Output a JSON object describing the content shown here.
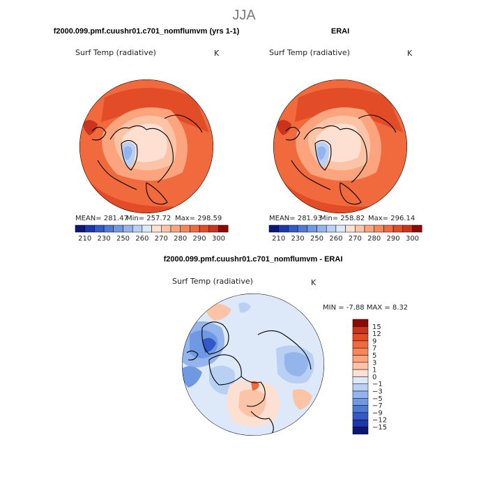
{
  "figure": {
    "title": "JJA"
  },
  "colors": {
    "warm": [
      "#fde0d2",
      "#fcc4a6",
      "#fba47e",
      "#f7875b",
      "#f06a3d",
      "#e24c26",
      "#c8341c",
      "#8c0a05"
    ],
    "diff_pos": [
      "#fde0d2",
      "#fcc4a6",
      "#fba47e",
      "#f7875b",
      "#f06a3d",
      "#e24c26",
      "#c8341c",
      "#8c0a05"
    ],
    "diff_neg": [
      "#dde9f9",
      "#b8d0f3",
      "#93b5ec",
      "#6f99e3",
      "#4e7ad6",
      "#3459c7",
      "#1e37a8",
      "#0b1675"
    ],
    "cold": [
      "#0b1675",
      "#1e37a8",
      "#3459c7",
      "#4e7ad6",
      "#6f99e3",
      "#93b5ec",
      "#b8d0f3",
      "#dde9f9"
    ],
    "coast": "#000000"
  },
  "panels": {
    "model": {
      "header": "f2000.099.pmf.cuushr01.c701_nomflumvm (yrs 1-1)",
      "variable": "Surf Temp (radiative)",
      "units": "K",
      "stats": {
        "mean": "MEAN= 281.47",
        "min": "Min= 257.72",
        "max": "Max= 298.59"
      }
    },
    "erai": {
      "header": "ERAI",
      "variable": "Surf Temp (radiative)",
      "units": "K",
      "stats": {
        "mean": "MEAN= 281.93",
        "min": "Min= 258.82",
        "max": "Max= 296.14"
      }
    },
    "diff": {
      "header": "f2000.099.pmf.cuushr01.c701_nomflumvm - ERAI",
      "variable": "Surf Temp (radiative)",
      "units": "K",
      "minmax": "MIN =   -7.88 MAX =    8.32"
    }
  },
  "chart_data": [
    {
      "type": "heatmap",
      "title": "Surf Temp (radiative)",
      "units": "K",
      "projection": "north polar stereographic",
      "stats": {
        "mean": 281.47,
        "min": 257.72,
        "max": 298.59
      },
      "colorbar_ticks": [
        "210",
        "230",
        "250",
        "260",
        "270",
        "280",
        "290",
        "300"
      ]
    },
    {
      "type": "heatmap",
      "title": "Surf Temp (radiative)",
      "units": "K",
      "projection": "north polar stereographic",
      "stats": {
        "mean": 281.93,
        "min": 258.82,
        "max": 296.14
      },
      "colorbar_ticks": [
        "210",
        "230",
        "250",
        "260",
        "270",
        "280",
        "290",
        "300"
      ]
    },
    {
      "type": "heatmap",
      "title": "Surf Temp (radiative)",
      "units": "K",
      "projection": "north polar stereographic",
      "stats": {
        "min": -7.88,
        "max": 8.32
      },
      "colorbar_ticks": [
        "15",
        "12",
        "9",
        "7",
        "5",
        "3",
        "1",
        "0",
        "−1",
        "−3",
        "−5",
        "−7",
        "−9",
        "−12",
        "−15"
      ]
    }
  ]
}
